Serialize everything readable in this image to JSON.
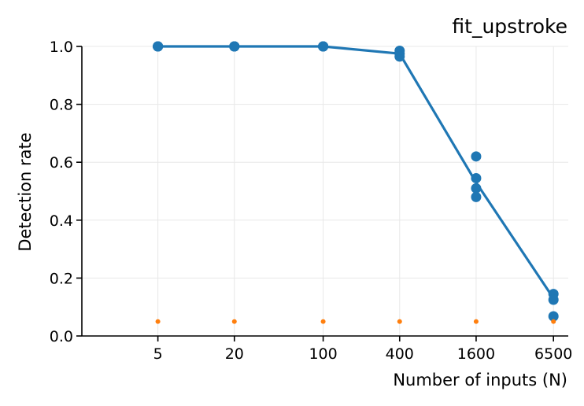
{
  "chart_data": {
    "type": "line",
    "title": "fit_upstroke",
    "xlabel": "Number of inputs (N)",
    "ylabel": "Detection rate",
    "x_scale": "log",
    "x_ticks": [
      5,
      20,
      100,
      400,
      1600,
      6500
    ],
    "y_ticks": [
      0.0,
      0.2,
      0.4,
      0.6,
      0.8,
      1.0
    ],
    "xlim": [
      1.26,
      8500
    ],
    "ylim": [
      0.0,
      1.0
    ],
    "grid": true,
    "series": [
      {
        "kind": "line",
        "color": "#1f77b4",
        "points": [
          [
            5,
            1.0
          ],
          [
            20,
            1.0
          ],
          [
            100,
            1.0
          ],
          [
            400,
            0.975
          ],
          [
            1600,
            0.53
          ],
          [
            6500,
            0.13
          ]
        ]
      },
      {
        "kind": "scatter",
        "color": "#1f77b4",
        "points": [
          [
            5,
            1.0
          ],
          [
            5,
            1.0
          ],
          [
            5,
            1.0
          ],
          [
            5,
            1.0
          ],
          [
            20,
            1.0
          ],
          [
            20,
            1.0
          ],
          [
            20,
            1.0
          ],
          [
            20,
            1.0
          ],
          [
            100,
            1.0
          ],
          [
            100,
            1.0
          ],
          [
            100,
            1.0
          ],
          [
            100,
            1.0
          ],
          [
            400,
            0.985
          ],
          [
            400,
            0.975
          ],
          [
            400,
            0.965
          ],
          [
            1600,
            0.62
          ],
          [
            1600,
            0.545
          ],
          [
            1600,
            0.51
          ],
          [
            1600,
            0.48
          ],
          [
            6500,
            0.145
          ],
          [
            6500,
            0.125
          ],
          [
            6500,
            0.068
          ]
        ]
      },
      {
        "kind": "scatter",
        "color": "#ff7f0e",
        "points": [
          [
            5,
            0.05
          ],
          [
            20,
            0.05
          ],
          [
            100,
            0.05
          ],
          [
            400,
            0.05
          ],
          [
            1600,
            0.05
          ],
          [
            6500,
            0.05
          ]
        ]
      }
    ]
  }
}
